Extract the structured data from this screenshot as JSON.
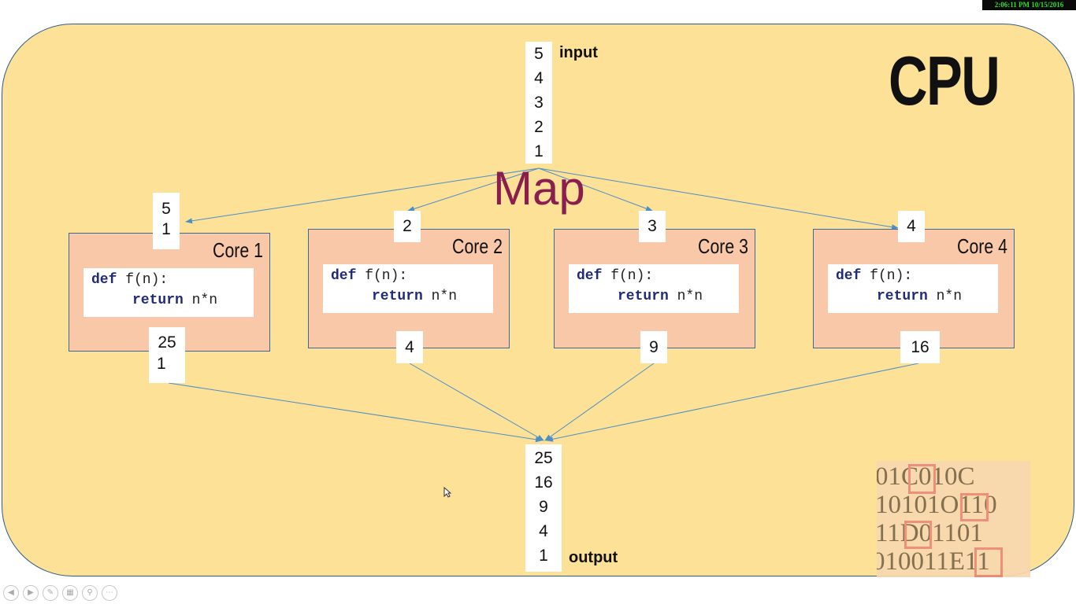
{
  "timestamp": "2:06:11 PM 10/15/2016",
  "cpu_label": "CPU",
  "map_label": "Map",
  "input": {
    "label": "input",
    "values": [
      "5",
      "4",
      "3",
      "2",
      "1"
    ]
  },
  "output": {
    "label": "output",
    "values": [
      "25",
      "16",
      "9",
      "4",
      "1"
    ]
  },
  "cores": [
    {
      "title": "Core 1",
      "in": [
        "5",
        "1"
      ],
      "out": [
        "25",
        "1"
      ]
    },
    {
      "title": "Core 2",
      "in": [
        "2"
      ],
      "out": [
        "4"
      ]
    },
    {
      "title": "Core 3",
      "in": [
        "3"
      ],
      "out": [
        "9"
      ]
    },
    {
      "title": "Core 4",
      "in": [
        "4"
      ],
      "out": [
        "16"
      ]
    }
  ],
  "code": {
    "kw_def": "def",
    "sig": " f(n):",
    "kw_return": "return",
    "expr": " n*n"
  },
  "binary_rows": [
    "01C010C",
    "10101O110",
    "11D01101",
    "010011E11"
  ],
  "toolbar": {
    "prev": "◀",
    "next": "▶",
    "pen": "✎",
    "slides": "▦",
    "zoom": "⚲",
    "more": "⋯"
  },
  "colors": {
    "board": "#fde196",
    "core": "#f9c8a8",
    "map": "#8a1e4f",
    "arrow": "#4a8fc8"
  }
}
